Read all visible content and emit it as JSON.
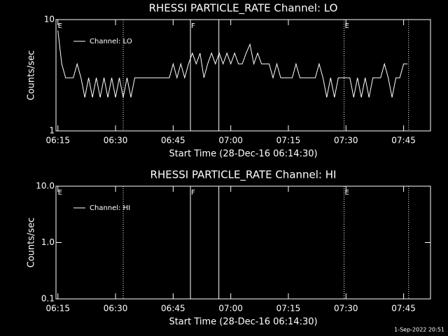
{
  "chart_data": [
    {
      "type": "line",
      "title": "RHESSI PARTICLE_RATE Channel: LO",
      "xlabel": "Start Time (28-Dec-16 06:14:30)",
      "ylabel": "Counts/sec",
      "xlim": [
        14.5,
        112
      ],
      "xticks": [
        {
          "value": 15,
          "label": "06:15"
        },
        {
          "value": 30,
          "label": "06:30"
        },
        {
          "value": 45,
          "label": "06:45"
        },
        {
          "value": 60,
          "label": "07:00"
        },
        {
          "value": 75,
          "label": "07:15"
        },
        {
          "value": 90,
          "label": "07:30"
        },
        {
          "value": 105,
          "label": "07:45"
        }
      ],
      "ylim": [
        1,
        10
      ],
      "yticks": [
        {
          "value": 10,
          "label": "10"
        },
        {
          "value": 1,
          "label": "1"
        }
      ],
      "log_y": true,
      "x": [
        15,
        16,
        17,
        18,
        19,
        20,
        21,
        22,
        23,
        24,
        25,
        26,
        27,
        28,
        29,
        30,
        31,
        32,
        33,
        34,
        35,
        36,
        37,
        38,
        39,
        40,
        41,
        42,
        43,
        44,
        45,
        46,
        47,
        48,
        49,
        50,
        51,
        52,
        53,
        54,
        55,
        56,
        57,
        58,
        59,
        60,
        61,
        62,
        63,
        64,
        65,
        66,
        67,
        68,
        69,
        70,
        71,
        72,
        73,
        74,
        75,
        76,
        77,
        78,
        79,
        80,
        81,
        82,
        83,
        84,
        85,
        86,
        87,
        88,
        89,
        90,
        91,
        92,
        93,
        94,
        95,
        96,
        97,
        98,
        99,
        100,
        101,
        102,
        103,
        104,
        105,
        106
      ],
      "series": [
        {
          "name": "Channel: LO",
          "color": "#ffffff",
          "values": [
            8,
            4,
            3,
            3,
            3,
            4,
            3,
            2,
            3,
            2,
            3,
            2,
            3,
            2,
            3,
            2,
            3,
            2,
            3,
            2,
            3,
            3,
            3,
            3,
            3,
            3,
            3,
            3,
            3,
            3,
            4,
            3,
            4,
            3,
            4,
            5,
            4,
            5,
            3,
            4,
            5,
            4,
            5,
            4,
            5,
            4,
            5,
            4,
            4,
            5,
            6,
            4,
            5,
            4,
            4,
            4,
            3,
            4,
            3,
            3,
            3,
            3,
            4,
            3,
            3,
            3,
            3,
            3,
            4,
            3,
            2,
            3,
            2,
            3,
            3,
            3,
            3,
            2,
            3,
            2,
            3,
            2,
            3,
            3,
            3,
            4,
            3,
            2,
            3,
            3,
            4,
            4
          ]
        }
      ],
      "vlines": [
        {
          "x": 32,
          "style": "dotted"
        },
        {
          "x": 49.5,
          "style": "solid"
        },
        {
          "x": 56.9,
          "style": "solid"
        },
        {
          "x": 89.5,
          "style": "dotted"
        },
        {
          "x": 106.3,
          "style": "dotted"
        }
      ],
      "markers": [
        {
          "label": "E",
          "x": 14.8
        },
        {
          "label": "F",
          "x": 49.5
        },
        {
          "label": "E",
          "x": 89.5
        }
      ]
    },
    {
      "type": "line",
      "title": "RHESSI PARTICLE_RATE Channel: HI",
      "xlabel": "Start Time (28-Dec-16 06:14:30)",
      "ylabel": "Counts/sec",
      "xlim": [
        14.5,
        112
      ],
      "xticks": [
        {
          "value": 15,
          "label": "06:15"
        },
        {
          "value": 30,
          "label": "06:30"
        },
        {
          "value": 45,
          "label": "06:45"
        },
        {
          "value": 60,
          "label": "07:00"
        },
        {
          "value": 75,
          "label": "07:15"
        },
        {
          "value": 90,
          "label": "07:30"
        },
        {
          "value": 105,
          "label": "07:45"
        }
      ],
      "ylim": [
        0.1,
        10
      ],
      "yticks": [
        {
          "value": 10,
          "label": "10.0"
        },
        {
          "value": 1,
          "label": "1.0"
        },
        {
          "value": 0.1,
          "label": "0.1"
        }
      ],
      "log_y": true,
      "x": [],
      "series": [
        {
          "name": "Channel: HI",
          "color": "#ffffff",
          "values": []
        }
      ],
      "vlines": [
        {
          "x": 32,
          "style": "dotted"
        },
        {
          "x": 49.5,
          "style": "solid"
        },
        {
          "x": 56.9,
          "style": "solid"
        },
        {
          "x": 89.5,
          "style": "dotted"
        },
        {
          "x": 106.3,
          "style": "dotted"
        }
      ],
      "markers": [
        {
          "label": "E",
          "x": 14.8
        },
        {
          "label": "F",
          "x": 49.5
        },
        {
          "label": "E",
          "x": 89.5
        }
      ]
    }
  ],
  "footer": "1-Sep-2022 20:51"
}
